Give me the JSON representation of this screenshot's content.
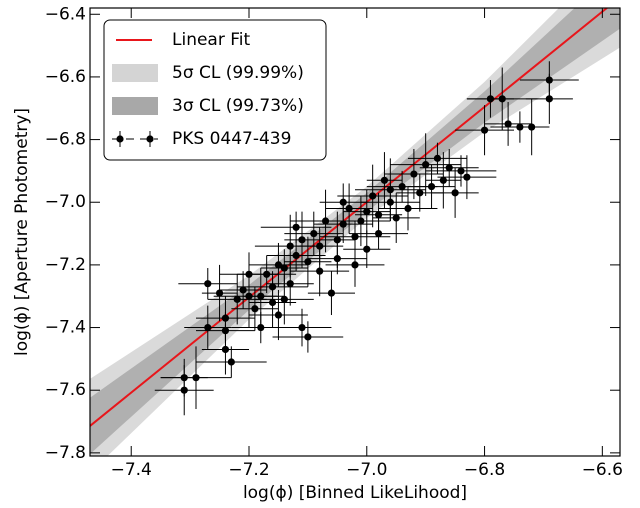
{
  "chart_data": {
    "type": "scatter",
    "x_label": "log(ϕ) [Binned LikeLihood]",
    "y_label": "log(ϕ) [Aperture Photometry]",
    "xlim": [
      -7.47,
      -6.57
    ],
    "ylim": [
      -7.81,
      -6.38
    ],
    "xticks": [
      {
        "value": -7.4,
        "label": "−7.4"
      },
      {
        "value": -7.2,
        "label": "−7.2"
      },
      {
        "value": -7.0,
        "label": "−7.0"
      },
      {
        "value": -6.8,
        "label": "−6.8"
      },
      {
        "value": -6.6,
        "label": "−6.6"
      }
    ],
    "yticks": [
      {
        "value": -7.8,
        "label": "−7.8"
      },
      {
        "value": -7.6,
        "label": "−7.6"
      },
      {
        "value": -7.4,
        "label": "−7.4"
      },
      {
        "value": -7.2,
        "label": "−7.2"
      },
      {
        "value": -7.0,
        "label": "−7.0"
      },
      {
        "value": -6.8,
        "label": "−6.8"
      },
      {
        "value": -6.6,
        "label": "−6.6"
      },
      {
        "value": -6.4,
        "label": "−6.4"
      }
    ],
    "legend": "upper left",
    "series": [
      {
        "name": "Linear Fit",
        "type": "line",
        "color": "#e8161b",
        "x": [
          -7.47,
          -6.57
        ],
        "values": [
          -7.714,
          -6.346
        ]
      },
      {
        "name": "5σ CL (99.99%)",
        "type": "band",
        "color": "#d4d4d4",
        "x": [
          -7.47,
          -7.2,
          -7.0,
          -6.8,
          -6.57
        ],
        "lower": [
          -7.864,
          -7.374,
          -7.05,
          -6.776,
          -6.506
        ],
        "upper": [
          -7.564,
          -7.234,
          -6.95,
          -6.616,
          -6.186
        ]
      },
      {
        "name": "3σ CL (99.73%)",
        "type": "band",
        "color": "#a8a8a8",
        "x": [
          -7.47,
          -7.2,
          -7.0,
          -6.8,
          -6.57
        ],
        "lower": [
          -7.804,
          -7.344,
          -7.03,
          -6.746,
          -6.446
        ],
        "upper": [
          -7.624,
          -7.264,
          -6.97,
          -6.646,
          -6.246
        ]
      },
      {
        "name": "PKS 0447-439",
        "type": "errorbar",
        "color": "#000000",
        "x": [
          -7.31,
          -7.31,
          -7.29,
          -7.27,
          -7.27,
          -7.25,
          -7.24,
          -7.24,
          -7.23,
          -7.24,
          -7.22,
          -7.21,
          -7.2,
          -7.19,
          -7.18,
          -7.18,
          -7.17,
          -7.16,
          -7.16,
          -7.15,
          -7.15,
          -7.14,
          -7.13,
          -7.13,
          -7.12,
          -7.11,
          -7.11,
          -7.1,
          -7.1,
          -7.09,
          -7.08,
          -7.08,
          -7.07,
          -7.06,
          -7.05,
          -7.05,
          -7.04,
          -7.03,
          -7.02,
          -7.02,
          -7.01,
          -7.0,
          -6.99,
          -6.98,
          -6.98,
          -6.97,
          -6.96,
          -6.95,
          -6.94,
          -6.93,
          -6.92,
          -6.91,
          -6.9,
          -6.89,
          -6.88,
          -6.87,
          -6.86,
          -6.85,
          -6.84,
          -6.83,
          -6.8,
          -6.79,
          -6.77,
          -6.76,
          -6.74,
          -6.72,
          -6.69,
          -6.69,
          -7.12,
          -7.2,
          -7.14,
          -7.04,
          -6.96,
          -7.0
        ],
        "values": [
          -7.6,
          -7.56,
          -7.56,
          -7.4,
          -7.26,
          -7.29,
          -7.41,
          -7.47,
          -7.51,
          -7.37,
          -7.31,
          -7.28,
          -7.3,
          -7.34,
          -7.4,
          -7.3,
          -7.23,
          -7.32,
          -7.27,
          -7.2,
          -7.36,
          -7.21,
          -7.14,
          -7.26,
          -7.17,
          -7.12,
          -7.4,
          -7.19,
          -7.43,
          -7.1,
          -7.22,
          -7.14,
          -7.06,
          -7.29,
          -7.18,
          -7.12,
          -7.07,
          -7.02,
          -7.11,
          -7.2,
          -7.06,
          -7.15,
          -6.98,
          -7.04,
          -7.1,
          -6.93,
          -7.0,
          -7.05,
          -6.95,
          -7.02,
          -6.91,
          -6.97,
          -6.88,
          -6.95,
          -6.86,
          -6.93,
          -6.89,
          -6.97,
          -6.9,
          -6.92,
          -6.77,
          -6.67,
          -6.67,
          -6.75,
          -6.76,
          -6.76,
          -6.61,
          -6.67,
          -7.08,
          -7.23,
          -7.31,
          -7.0,
          -6.96,
          -7.03
        ],
        "xerr": [
          0.05,
          0.04,
          0.06,
          0.04,
          0.05,
          0.03,
          0.05,
          0.04,
          0.06,
          0.05,
          0.05,
          0.04,
          0.06,
          0.04,
          0.05,
          0.03,
          0.05,
          0.04,
          0.06,
          0.05,
          0.05,
          0.04,
          0.06,
          0.04,
          0.05,
          0.03,
          0.05,
          0.04,
          0.06,
          0.05,
          0.05,
          0.04,
          0.06,
          0.04,
          0.05,
          0.03,
          0.05,
          0.04,
          0.06,
          0.05,
          0.05,
          0.04,
          0.06,
          0.04,
          0.05,
          0.03,
          0.05,
          0.04,
          0.06,
          0.05,
          0.05,
          0.04,
          0.06,
          0.04,
          0.05,
          0.03,
          0.05,
          0.04,
          0.06,
          0.05,
          0.05,
          0.04,
          0.06,
          0.04,
          0.05,
          0.03,
          0.05,
          0.04,
          0.06,
          0.05,
          0.05,
          0.04,
          0.06,
          0.04
        ],
        "yerr": [
          0.08,
          0.06,
          0.1,
          0.07,
          0.05,
          0.09,
          0.06,
          0.08,
          0.05,
          0.07,
          0.08,
          0.06,
          0.1,
          0.07,
          0.05,
          0.09,
          0.06,
          0.08,
          0.05,
          0.07,
          0.08,
          0.06,
          0.1,
          0.07,
          0.05,
          0.09,
          0.06,
          0.08,
          0.05,
          0.07,
          0.08,
          0.06,
          0.1,
          0.07,
          0.05,
          0.09,
          0.06,
          0.08,
          0.05,
          0.07,
          0.08,
          0.06,
          0.1,
          0.07,
          0.05,
          0.09,
          0.06,
          0.08,
          0.05,
          0.07,
          0.08,
          0.06,
          0.1,
          0.07,
          0.05,
          0.09,
          0.06,
          0.08,
          0.05,
          0.07,
          0.08,
          0.06,
          0.1,
          0.07,
          0.05,
          0.09,
          0.06,
          0.08,
          0.05,
          0.07,
          0.08,
          0.06,
          0.1,
          0.07
        ]
      }
    ]
  }
}
